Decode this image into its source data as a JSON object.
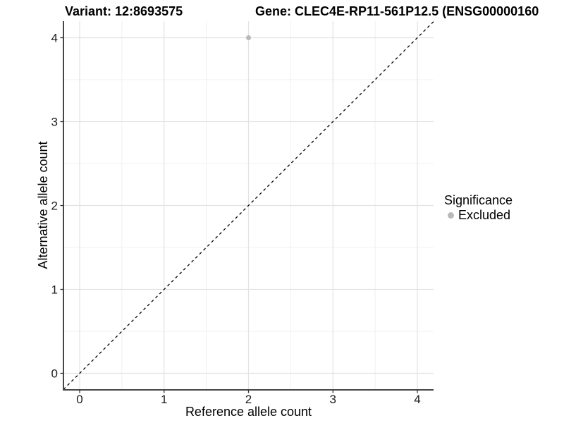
{
  "chart_data": {
    "type": "scatter",
    "titles": {
      "variant": "Variant: 12:8693575",
      "gene": "Gene: CLEC4E-RP11-561P12.5 (ENSG00000160"
    },
    "xlabel": "Reference allele count",
    "ylabel": "Alternative allele count",
    "xlim": [
      0,
      4
    ],
    "ylim": [
      0,
      4
    ],
    "x_ticks": [
      0,
      1,
      2,
      3,
      4
    ],
    "y_ticks": [
      0,
      1,
      2,
      3,
      4
    ],
    "x_minor_ticks": [
      0.5,
      1.5,
      2.5,
      3.5
    ],
    "y_minor_ticks": [
      0.5,
      1.5,
      2.5,
      3.5
    ],
    "grid": true,
    "abline": {
      "slope": 1,
      "intercept": 0,
      "linetype": "dashed",
      "color": "#000000"
    },
    "series": [
      {
        "name": "Excluded",
        "color": "#b9b9b9",
        "points": [
          {
            "x": 2,
            "y": 4
          }
        ]
      }
    ],
    "legend": {
      "title": "Significance",
      "position": "right",
      "items": [
        {
          "label": "Excluded",
          "color": "#b9b9b9",
          "marker": "circle"
        }
      ]
    },
    "colors": {
      "background": "#ffffff",
      "grid_major": "#e3e3e3",
      "grid_minor": "#f0f0f0",
      "axis_line": "#474747",
      "tick_mark": "#333333",
      "tick_label": "#1c1c1c",
      "point": "#b9b9b9",
      "identity_line": "#000000"
    }
  }
}
